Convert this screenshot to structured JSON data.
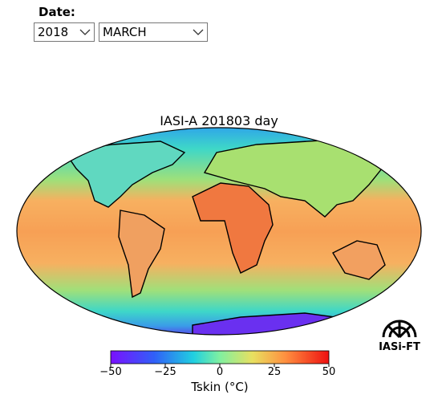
{
  "header": {
    "label": "Date:",
    "year": "2018",
    "month": "MARCH"
  },
  "map": {
    "title": "IASI-A 201803 day",
    "colorbar": {
      "lim": [
        -50,
        50
      ],
      "ticks": [
        {
          "value": -50,
          "label": "−50"
        },
        {
          "value": -25,
          "label": "−25"
        },
        0,
        25,
        50
      ],
      "label": "Tskin (°C)"
    }
  },
  "logo": "IASi-FT"
}
